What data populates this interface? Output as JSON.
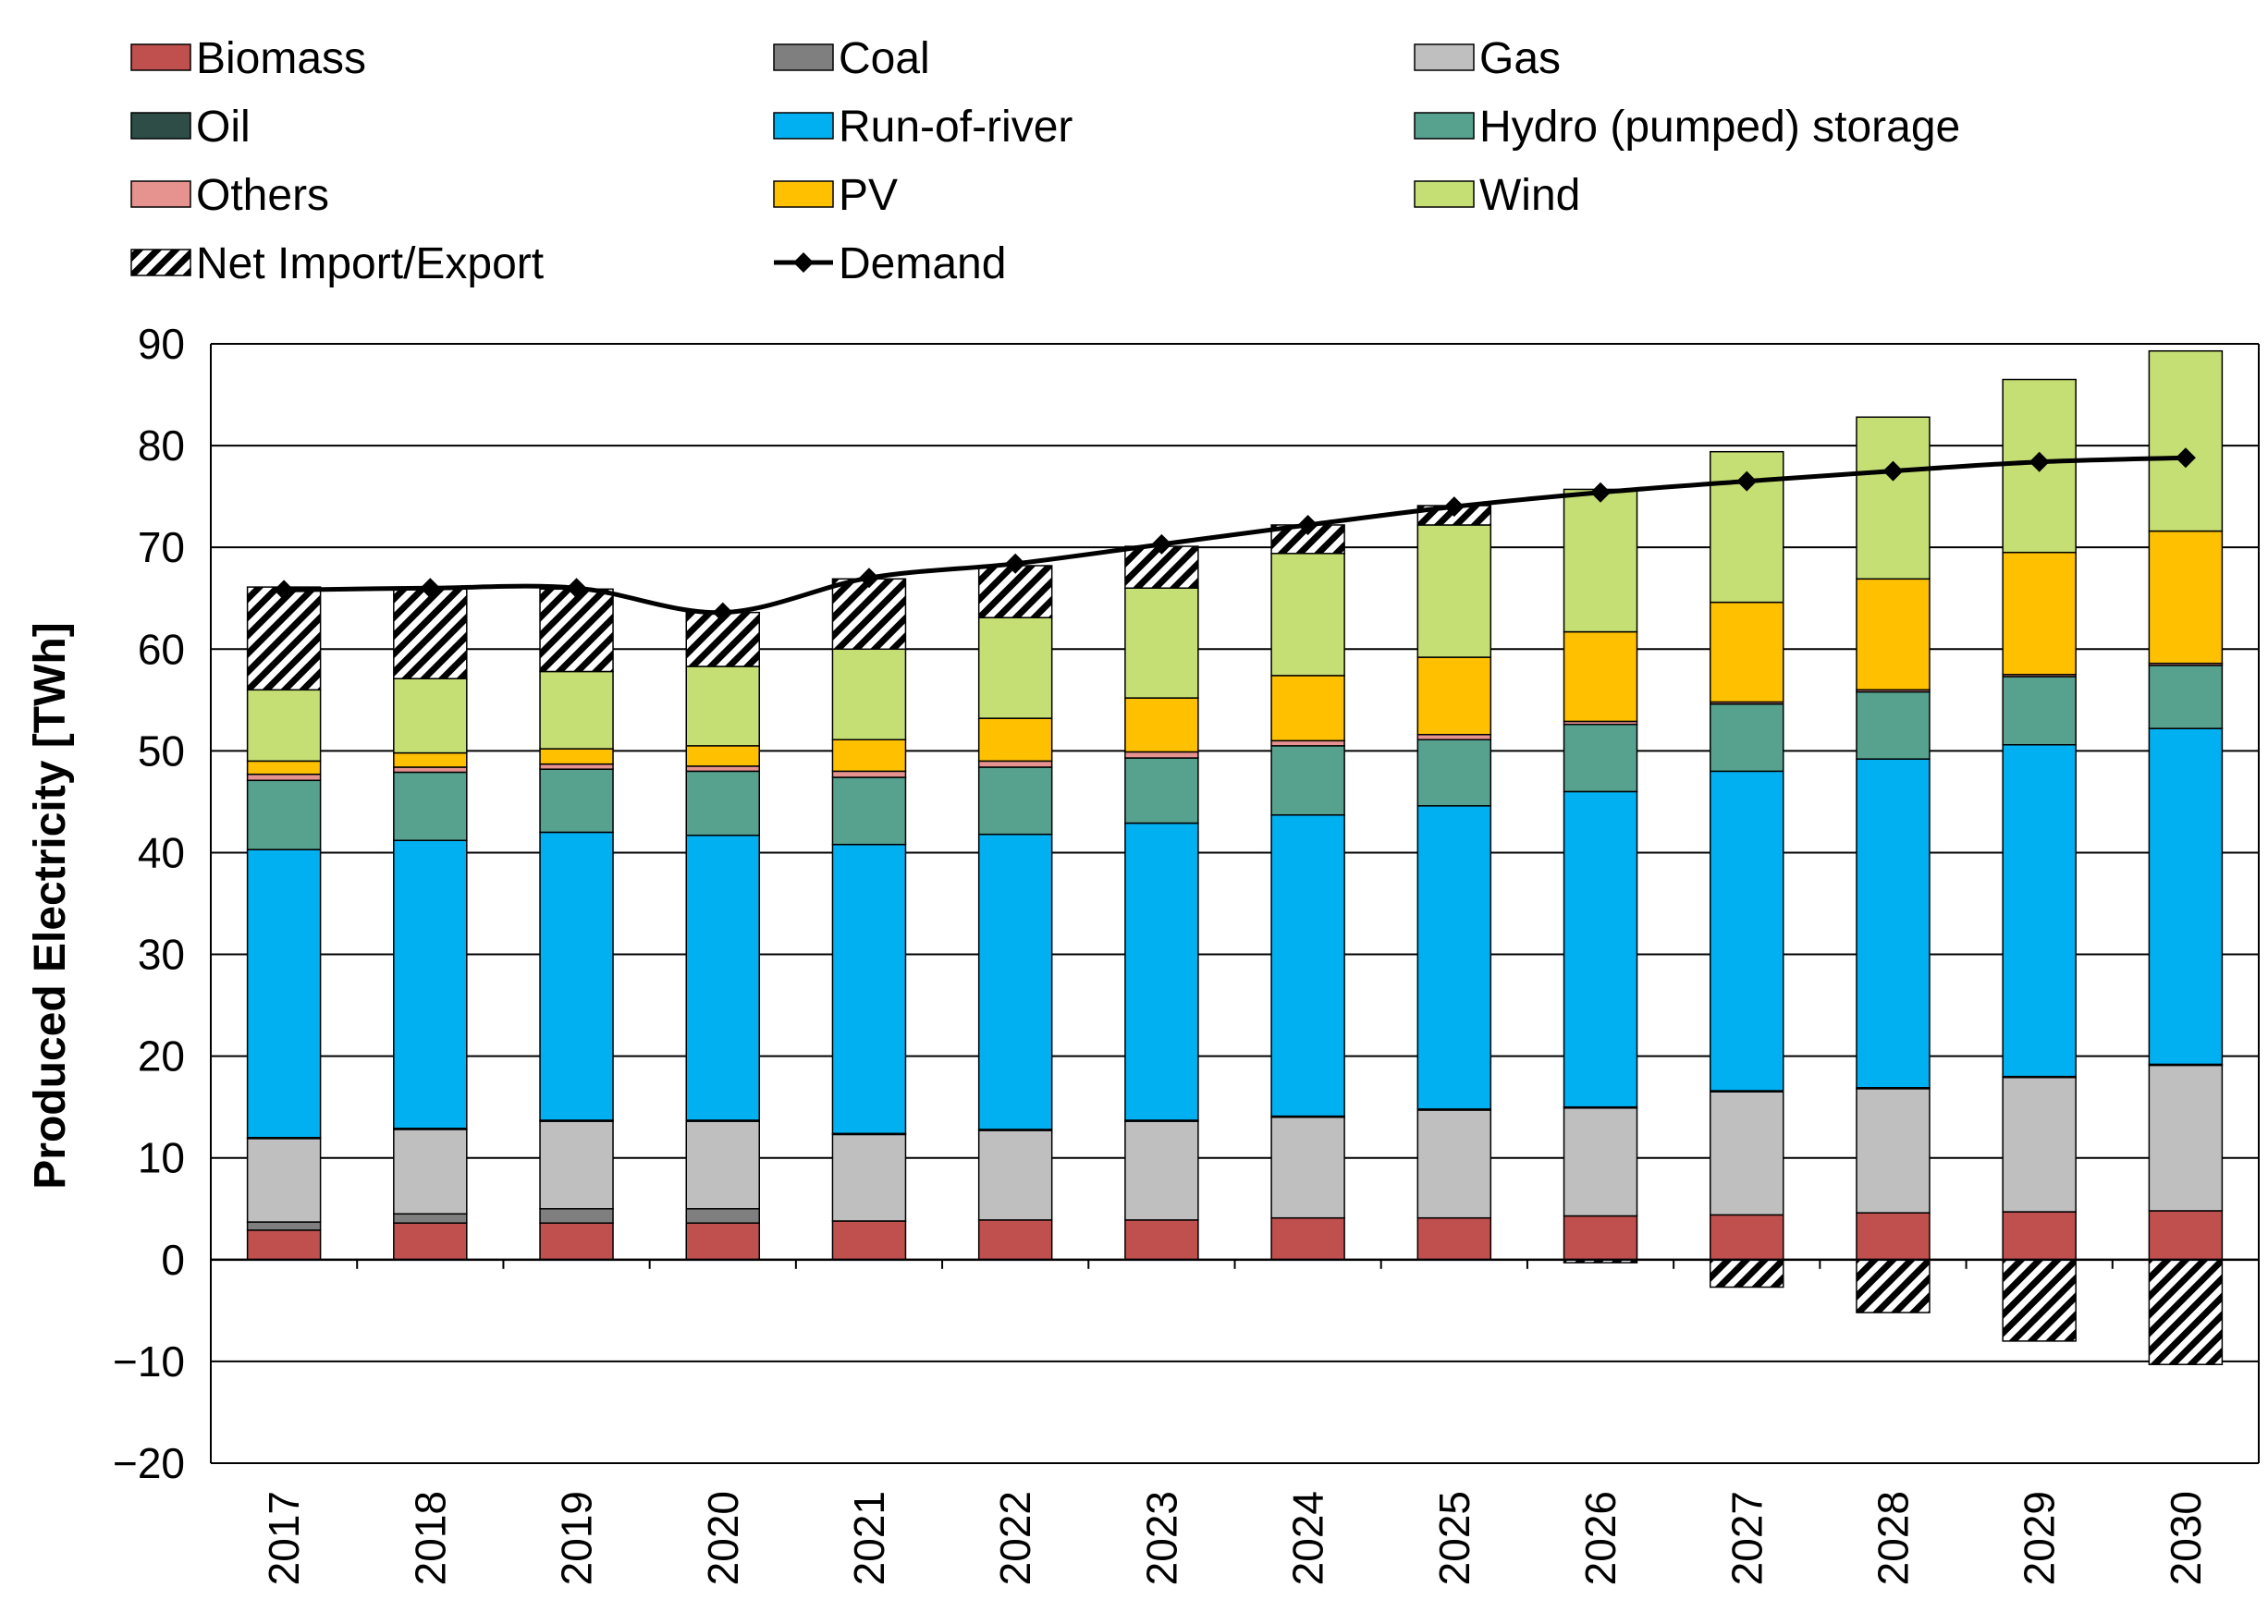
{
  "chart_data": {
    "type": "bar",
    "stacked": true,
    "title": "",
    "xlabel": "",
    "ylabel": "Produced Electricity [TWh]",
    "ylim": [
      -20,
      90
    ],
    "yticks": [
      -20,
      -10,
      0,
      10,
      20,
      30,
      40,
      50,
      60,
      70,
      80,
      90
    ],
    "grid": "horizontal",
    "legend_position": "top",
    "categories": [
      "2017",
      "2018",
      "2019",
      "2020",
      "2021",
      "2022",
      "2023",
      "2024",
      "2025",
      "2026",
      "2027",
      "2028",
      "2029",
      "2030"
    ],
    "series": [
      {
        "name": "Biomass",
        "color": "#c0504d",
        "values": [
          2.9,
          3.6,
          3.6,
          3.6,
          3.8,
          3.9,
          3.9,
          4.1,
          4.1,
          4.3,
          4.4,
          4.6,
          4.7,
          4.8
        ]
      },
      {
        "name": "Coal",
        "color": "#7f7f7f",
        "values": [
          0.8,
          0.9,
          1.4,
          1.4,
          0.0,
          0.0,
          0.0,
          0.0,
          0.0,
          0.0,
          0.0,
          0.0,
          0.0,
          0.0
        ]
      },
      {
        "name": "Gas",
        "color": "#bfbfbf",
        "values": [
          8.2,
          8.3,
          8.6,
          8.6,
          8.5,
          8.8,
          9.7,
          9.9,
          10.6,
          10.6,
          12.1,
          12.2,
          13.2,
          14.3
        ]
      },
      {
        "name": "Oil",
        "color": "#2d4d46",
        "values": [
          0.1,
          0.1,
          0.1,
          0.1,
          0.1,
          0.1,
          0.1,
          0.1,
          0.1,
          0.1,
          0.1,
          0.1,
          0.1,
          0.1
        ]
      },
      {
        "name": "Run-of-river",
        "color": "#00b0f0",
        "values": [
          28.3,
          28.3,
          28.3,
          28.0,
          28.4,
          29.0,
          29.2,
          29.6,
          29.8,
          31.0,
          31.4,
          32.3,
          32.6,
          33.0
        ]
      },
      {
        "name": "Hydro (pumped) storage",
        "color": "#57a18f",
        "values": [
          6.8,
          6.7,
          6.2,
          6.3,
          6.6,
          6.6,
          6.4,
          6.8,
          6.5,
          6.6,
          6.6,
          6.6,
          6.7,
          6.2
        ]
      },
      {
        "name": "Others",
        "color": "#e6928f",
        "values": [
          0.6,
          0.5,
          0.5,
          0.5,
          0.6,
          0.6,
          0.6,
          0.5,
          0.5,
          0.3,
          0.2,
          0.2,
          0.2,
          0.2
        ]
      },
      {
        "name": "PV",
        "color": "#ffc000",
        "values": [
          1.3,
          1.4,
          1.5,
          2.0,
          3.1,
          4.2,
          5.3,
          6.4,
          7.6,
          8.8,
          9.8,
          10.9,
          12.0,
          13.0
        ]
      },
      {
        "name": "Wind",
        "color": "#c6df74",
        "values": [
          7.0,
          7.3,
          7.6,
          7.8,
          8.9,
          9.9,
          10.8,
          12.0,
          13.0,
          14.0,
          14.8,
          15.9,
          17.0,
          17.7
        ]
      },
      {
        "name": "Net Import/Export",
        "color": "hatch",
        "values": [
          10.1,
          8.8,
          8.1,
          5.3,
          6.9,
          5.1,
          4.1,
          2.8,
          1.9,
          -0.3,
          -2.7,
          -5.2,
          -8.0,
          -10.3
        ]
      }
    ],
    "line_series": [
      {
        "name": "Demand",
        "color": "#000000",
        "marker": "diamond",
        "values": [
          65.8,
          66.0,
          66.0,
          63.6,
          67.0,
          68.4,
          70.3,
          72.2,
          74.0,
          75.4,
          76.5,
          77.5,
          78.4,
          78.8
        ]
      }
    ]
  }
}
